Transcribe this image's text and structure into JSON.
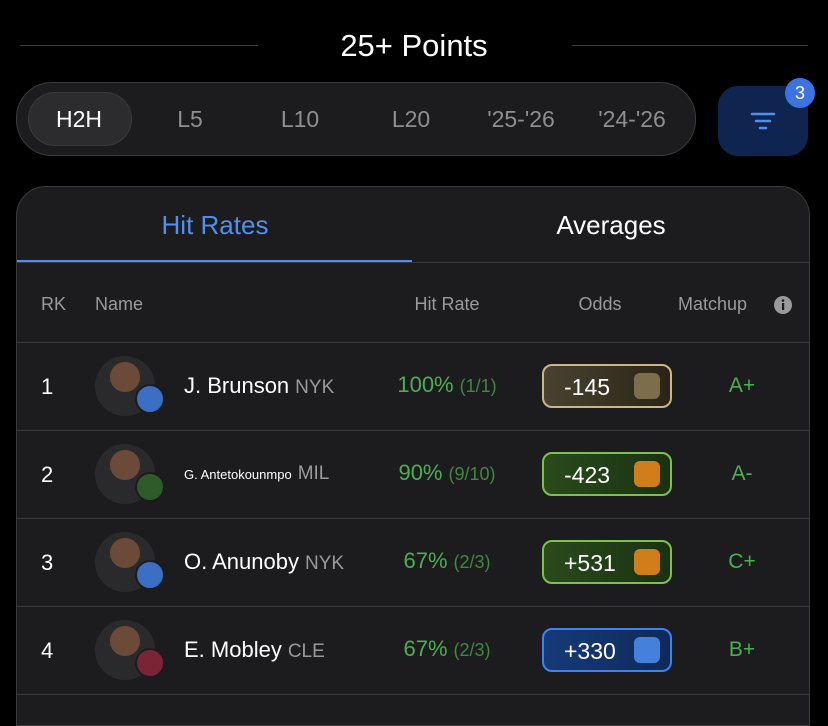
{
  "header": {
    "title": "25+ Points"
  },
  "periods": [
    "H2H",
    "L5",
    "L10",
    "L20",
    "'25-'26",
    "'24-'26"
  ],
  "filter": {
    "badge": "3"
  },
  "tabs": [
    "Hit Rates",
    "Averages"
  ],
  "table": {
    "columns": [
      "RK",
      "Name",
      "Hit Rate",
      "Odds",
      "Matchup"
    ],
    "rows": [
      {
        "rank": "1",
        "name": "J. Brunson",
        "team": "NYK",
        "hit_rate": "100%",
        "hits": "(1/1)",
        "odds": "-145",
        "matchup": "A+"
      },
      {
        "rank": "2",
        "name": "G. Antetokounmpo",
        "team": "MIL",
        "hit_rate": "90%",
        "hits": "(9/10)",
        "odds": "-423",
        "matchup": "A-"
      },
      {
        "rank": "3",
        "name": "O. Anunoby",
        "team": "NYK",
        "hit_rate": "67%",
        "hits": "(2/3)",
        "odds": "+531",
        "matchup": "C+"
      },
      {
        "rank": "4",
        "name": "E. Mobley",
        "team": "CLE",
        "hit_rate": "67%",
        "hits": "(2/3)",
        "odds": "+330",
        "matchup": "B+"
      }
    ]
  }
}
